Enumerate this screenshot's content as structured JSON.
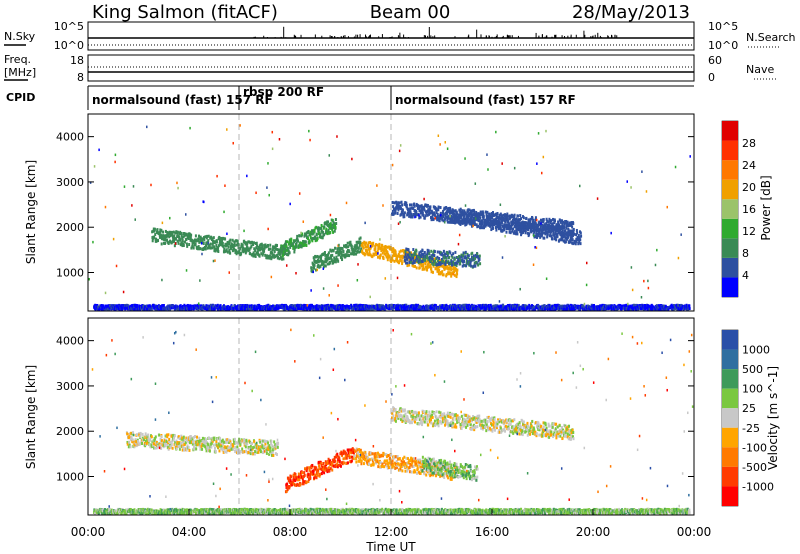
{
  "header": {
    "station": "King Salmon (fitACF)",
    "beam": "Beam 00",
    "date": "28/May/2013"
  },
  "noise_panel": {
    "left_label": "N.Sky",
    "right_label": "N.Search",
    "left_ticks": [
      "10^5",
      "10^0"
    ],
    "right_ticks": [
      "10^5",
      "10^0"
    ]
  },
  "freq_panel": {
    "left_label_1": "Freq.",
    "left_label_2": "[MHz]",
    "right_label": "Nave",
    "left_ticks": [
      "18",
      "8"
    ],
    "right_ticks": [
      "60",
      "0"
    ]
  },
  "cpid": {
    "label": "CPID",
    "segments": [
      {
        "text": "normalsound (fast) 157 RF",
        "start_h": 0,
        "end_h": 6
      },
      {
        "text": "rbsp 200 RF",
        "start_h": 6,
        "end_h": 12
      },
      {
        "text": "normalsound (fast) 157 RF",
        "start_h": 12,
        "end_h": 24
      }
    ]
  },
  "colors": {
    "power": [
      "#0000ff",
      "#2e50a0",
      "#3a8a55",
      "#2faa2f",
      "#9bc36a",
      "#f0a000",
      "#ff7800",
      "#ff3000",
      "#e00000"
    ],
    "velocity": [
      "#2a4fa8",
      "#2f6fa0",
      "#3e9a5a",
      "#7ac840",
      "#c8c8c8",
      "#ffa500",
      "#ff7a00",
      "#ff3b00",
      "#ff0000"
    ]
  },
  "chart_data": [
    {
      "type": "heatmap",
      "title": "Power",
      "ylabel": "Slant Range [km]",
      "xlabel": "",
      "xlim_hours": [
        0,
        24
      ],
      "ylim": [
        150,
        4500
      ],
      "y_ticks": [
        1000,
        2000,
        3000,
        4000
      ],
      "colorbar": {
        "label": "Power [dB]",
        "ticks": [
          4,
          8,
          12,
          16,
          20,
          24,
          28
        ],
        "range": [
          0,
          32
        ]
      },
      "features": [
        {
          "name": "band",
          "t0": 2.5,
          "t1": 7.8,
          "r0": 1850,
          "r1": 1450,
          "level": 9
        },
        {
          "name": "band",
          "t0": 7.6,
          "t1": 9.8,
          "r0": 1500,
          "r1": 2100,
          "level": 10
        },
        {
          "name": "band",
          "t0": 8.8,
          "t1": 10.8,
          "r0": 1200,
          "r1": 1650,
          "level": 9
        },
        {
          "name": "band",
          "t0": 10.8,
          "t1": 14.6,
          "r0": 1600,
          "r1": 1050,
          "level": 19
        },
        {
          "name": "band",
          "t0": 12.5,
          "t1": 15.5,
          "r0": 1400,
          "r1": 1300,
          "level": 7
        },
        {
          "name": "band",
          "t0": 12.0,
          "t1": 19.2,
          "r0": 2450,
          "r1": 2000,
          "level": 6
        },
        {
          "name": "band",
          "t0": 14.2,
          "t1": 19.5,
          "r0": 2300,
          "r1": 1800,
          "level": 6
        },
        {
          "name": "band",
          "t0": 0.2,
          "t1": 23.8,
          "r0": 260,
          "r1": 260,
          "level": 3
        }
      ]
    },
    {
      "type": "heatmap",
      "title": "Velocity",
      "ylabel": "Slant Range [km]",
      "xlabel": "Time UT",
      "xlim_hours": [
        0,
        24
      ],
      "x_tick_labels": [
        "00:00",
        "04:00",
        "08:00",
        "12:00",
        "16:00",
        "20:00",
        "00:00"
      ],
      "ylim": [
        150,
        4500
      ],
      "y_ticks": [
        1000,
        2000,
        3000,
        4000
      ],
      "colorbar": {
        "label": "Velocity [m s^-1]",
        "ticks": [
          "1000",
          "500",
          "100",
          "25",
          "-25",
          "-100",
          "-500",
          "-1000"
        ]
      },
      "features": [
        {
          "name": "band",
          "t0": 1.5,
          "t1": 7.5,
          "r0": 1850,
          "r1": 1650,
          "level": 4
        },
        {
          "name": "band",
          "t0": 7.8,
          "t1": 10.5,
          "r0": 850,
          "r1": 1550,
          "level": 7
        },
        {
          "name": "band",
          "t0": 10.5,
          "t1": 14.6,
          "r0": 1500,
          "r1": 1100,
          "level": 5
        },
        {
          "name": "band",
          "t0": 13.2,
          "t1": 15.4,
          "r0": 1300,
          "r1": 1100,
          "level": 3
        },
        {
          "name": "band",
          "t0": 12.0,
          "t1": 19.2,
          "r0": 2400,
          "r1": 2000,
          "level": 4
        },
        {
          "name": "band",
          "t0": 0.2,
          "t1": 23.8,
          "r0": 260,
          "r1": 260,
          "level": 3
        }
      ]
    }
  ]
}
